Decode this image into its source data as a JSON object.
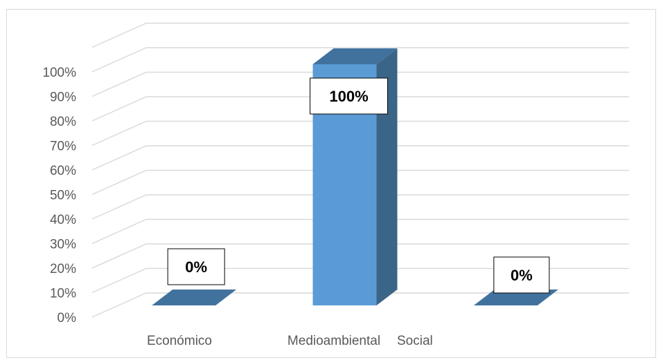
{
  "chart_data": {
    "type": "bar",
    "style": "3d-column",
    "categories": [
      "Económico",
      "Medioambiental",
      "Social"
    ],
    "values": [
      0,
      100,
      0
    ],
    "data_labels": [
      "0%",
      "100%",
      "0%"
    ],
    "ylim": [
      0,
      100
    ],
    "ytick_step": 10,
    "ytick_labels": [
      "0%",
      "10%",
      "20%",
      "30%",
      "40%",
      "50%",
      "60%",
      "70%",
      "80%",
      "90%",
      "100%"
    ],
    "grid": true,
    "legend": "none",
    "colors": {
      "bar_front": "#5b9bd5",
      "bar_side": "#3b6587",
      "bar_top": "#41729e",
      "gridline": "#d9d9d9",
      "text": "#595959",
      "border": "#d9d9d9"
    }
  }
}
